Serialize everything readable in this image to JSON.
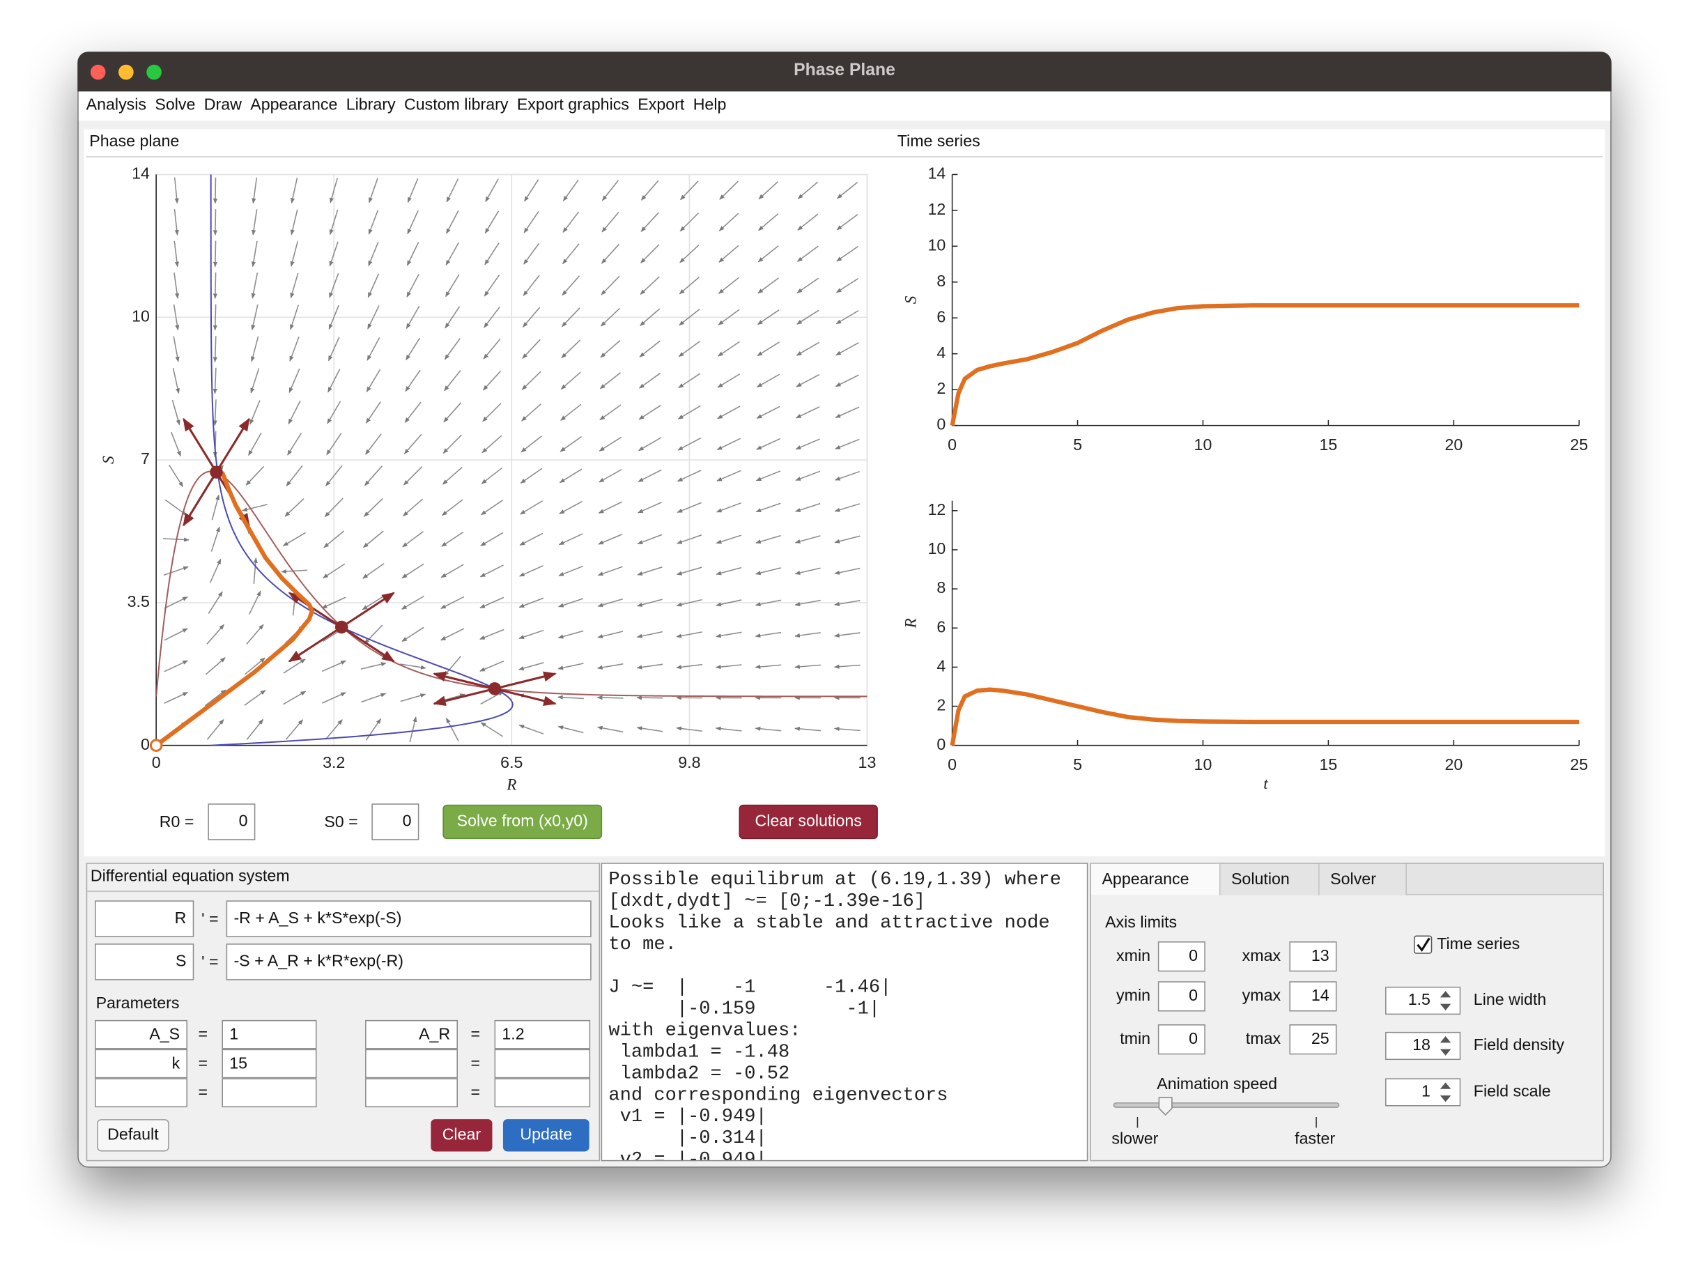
{
  "window": {
    "title": "Phase Plane"
  },
  "menu": [
    "Analysis",
    "Solve",
    "Draw",
    "Appearance",
    "Library",
    "Custom library",
    "Export graphics",
    "Export",
    "Help"
  ],
  "phase_plane": {
    "panel_title": "Phase plane",
    "xlabel": "R",
    "ylabel": "S",
    "xlim": [
      0,
      13
    ],
    "ylim": [
      0,
      14
    ],
    "xticks": [
      0,
      {
        "value": 3.25,
        "label": "3.2"
      },
      6.5,
      {
        "value": 9.75,
        "label": "9.8"
      },
      13
    ],
    "yticks": [
      0,
      3.5,
      7,
      {
        "value": 10.5,
        "label": "10"
      },
      14
    ],
    "grid": true,
    "equilibria": [
      {
        "R": 1.1,
        "S": 6.7
      },
      {
        "R": 3.39,
        "S": 2.9
      },
      {
        "R": 6.19,
        "S": 1.39
      }
    ]
  },
  "time_series": {
    "panel_title": "Time series",
    "xlabel": "t",
    "xlim": [
      0,
      25
    ],
    "xticks": [
      0,
      5,
      10,
      15,
      20,
      25
    ],
    "t": [
      0,
      0.25,
      0.5,
      1,
      1.5,
      2,
      3,
      4,
      5,
      6,
      7,
      8,
      9,
      10,
      12,
      15,
      20,
      25
    ],
    "top": {
      "ylabel": "S",
      "ylim": [
        0,
        14
      ],
      "yticks": [
        0,
        2,
        4,
        6,
        8,
        10,
        12,
        14
      ],
      "values": [
        0,
        1.8,
        2.6,
        3.1,
        3.3,
        3.45,
        3.7,
        4.1,
        4.6,
        5.3,
        5.9,
        6.3,
        6.55,
        6.65,
        6.7,
        6.7,
        6.7,
        6.7
      ]
    },
    "bottom": {
      "ylabel": "R",
      "ylim": [
        0,
        12.5
      ],
      "yticks": [
        0,
        2,
        4,
        6,
        8,
        10,
        12
      ],
      "values": [
        0,
        1.8,
        2.5,
        2.8,
        2.85,
        2.8,
        2.6,
        2.3,
        2.0,
        1.7,
        1.45,
        1.32,
        1.25,
        1.22,
        1.2,
        1.2,
        1.2,
        1.2
      ]
    }
  },
  "initial": {
    "R0_label": "R0 =",
    "R0": 0,
    "S0_label": "S0 =",
    "S0": 0
  },
  "buttons": {
    "solve": "Solve from (x0,y0)",
    "clear_solutions": "Clear solutions",
    "default": "Default",
    "clear": "Clear",
    "update": "Update"
  },
  "system": {
    "title": "Differential equation system",
    "equations": [
      {
        "var": "R",
        "sign": "' =",
        "rhs": "-R + A_S + k*S*exp(-S)"
      },
      {
        "var": "S",
        "sign": "' =",
        "rhs": "-S + A_R + k*R*exp(-R)"
      }
    ],
    "parameters_title": "Parameters",
    "parameters": [
      [
        {
          "name": "A_S",
          "sign": "=",
          "value": 1
        },
        {
          "name": "A_R",
          "sign": "=",
          "value": 1.2
        }
      ],
      [
        {
          "name": "k",
          "sign": "=",
          "value": 15
        },
        {
          "sign": "="
        }
      ],
      [
        {
          "sign": "="
        },
        {
          "sign": "="
        }
      ]
    ]
  },
  "output": {
    "blocks": [
      [
        "Possible equilibrum at (6.19,1.39) where",
        "[dxdt,dydt] ~= [0;-1.39e-16]",
        "Looks like a stable and attractive node",
        "to me."
      ],
      [
        "J ~=  |    -1      -1.46|",
        "      |-0.159        -1|",
        "with eigenvalues:",
        " lambda1 = -1.48",
        " lambda2 = -0.52",
        "and corresponding eigenvectors",
        " v1 = |-0.949|",
        "      |-0.314|",
        " v2 = |-0.949|"
      ]
    ]
  },
  "settings": {
    "tabs": [
      "Appearance",
      "Solution",
      "Solver"
    ],
    "axis_limits_title": "Axis limits",
    "axis_labels": [
      "xmin",
      "xmax",
      "ymin",
      "ymax",
      "tmin",
      "tmax"
    ],
    "animation": {
      "label": "Animation speed",
      "slower": "slower",
      "faster": "faster"
    },
    "time_series_toggle": {
      "label": "Time series",
      "checked": true
    },
    "spinners": [
      {
        "value": 1.5,
        "label": "Line width"
      },
      {
        "value": 18,
        "label": "Field density"
      },
      {
        "value": 1,
        "label": "Field scale"
      }
    ]
  }
}
